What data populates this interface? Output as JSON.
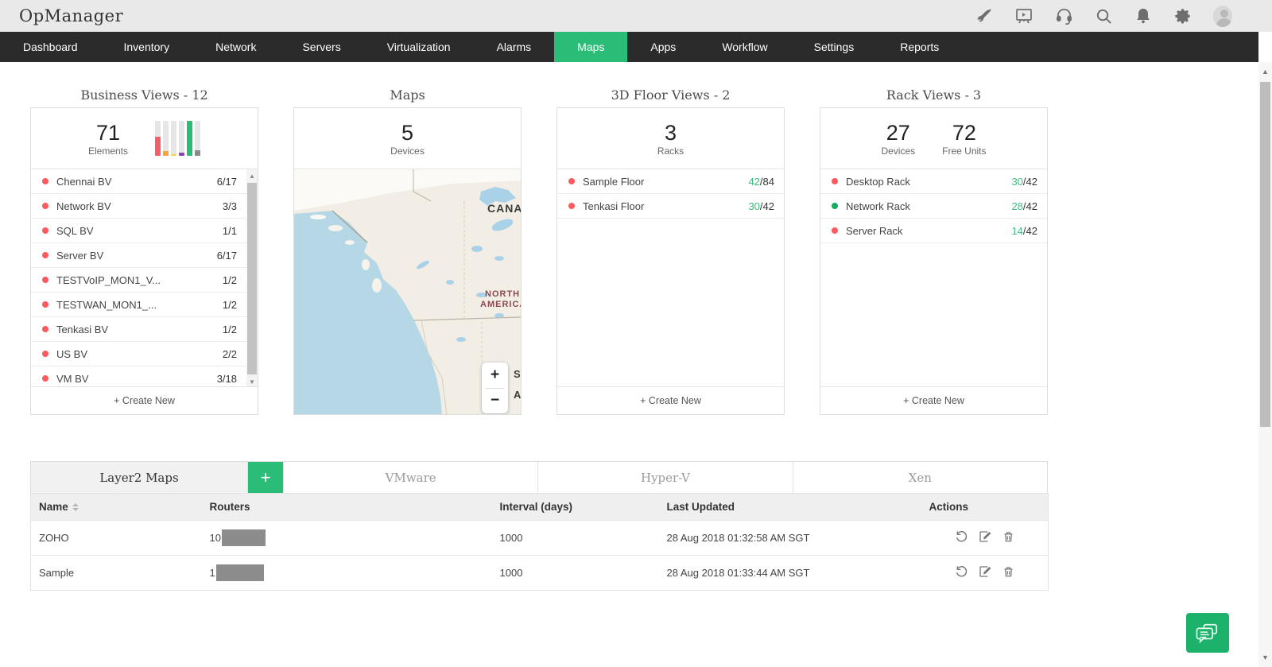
{
  "app": {
    "logo": "OpManager"
  },
  "colors": {
    "accent_green": "#2abd77",
    "status_red": "#fc5a5f",
    "status_green": "#17ab62",
    "count_green": "#3dbd7d"
  },
  "nav": {
    "items": [
      "Dashboard",
      "Inventory",
      "Network",
      "Servers",
      "Virtualization",
      "Alarms",
      "Maps",
      "Apps",
      "Workflow",
      "Settings",
      "Reports"
    ],
    "active": "Maps"
  },
  "panels": {
    "business_views": {
      "title": "Business Views - 12",
      "stat": {
        "value": "71",
        "label": "Elements"
      },
      "minibar": [
        {
          "pct": 55,
          "color": "#f3606a"
        },
        {
          "pct": 14,
          "color": "#f5a53a"
        },
        {
          "pct": 5,
          "color": "#f7d24a"
        },
        {
          "pct": 8,
          "color": "#8e44ad"
        },
        {
          "pct": 100,
          "color": "#2abd77"
        },
        {
          "pct": 16,
          "color": "#8a8a8a"
        }
      ],
      "items": [
        {
          "name": "Chennai BV",
          "count": "6/17",
          "status": "red"
        },
        {
          "name": "Network BV",
          "count": "3/3",
          "status": "red"
        },
        {
          "name": "SQL BV",
          "count": "1/1",
          "status": "red"
        },
        {
          "name": "Server BV",
          "count": "6/17",
          "status": "red"
        },
        {
          "name": "TESTVoIP_MON1_V...",
          "count": "1/2",
          "status": "red"
        },
        {
          "name": "TESTWAN_MON1_...",
          "count": "1/2",
          "status": "red"
        },
        {
          "name": "Tenkasi BV",
          "count": "1/2",
          "status": "red"
        },
        {
          "name": "US BV",
          "count": "2/2",
          "status": "red"
        },
        {
          "name": "VM BV",
          "count": "3/18",
          "status": "red"
        }
      ],
      "create_new": "+ Create New"
    },
    "maps": {
      "title": "Maps",
      "stat": {
        "value": "5",
        "label": "Devices"
      },
      "labels": {
        "canada": "CANADA",
        "north_america_1": "NORTH",
        "north_america_2": "AMERICA",
        "partial_1": "S",
        "partial_2": "A"
      },
      "zoom_in": "+",
      "zoom_out": "−"
    },
    "floor_views": {
      "title": "3D Floor Views - 2",
      "stat": {
        "value": "3",
        "label": "Racks"
      },
      "items": [
        {
          "name": "Sample Floor",
          "used": "42",
          "total": "/84",
          "status": "red"
        },
        {
          "name": "Tenkasi Floor",
          "used": "30",
          "total": "/42",
          "status": "red"
        }
      ],
      "create_new": "+ Create New"
    },
    "rack_views": {
      "title": "Rack Views - 3",
      "stats": [
        {
          "value": "27",
          "label": "Devices"
        },
        {
          "value": "72",
          "label": "Free Units"
        }
      ],
      "items": [
        {
          "name": "Desktop Rack",
          "used": "30",
          "total": "/42",
          "status": "red"
        },
        {
          "name": "Network Rack",
          "used": "28",
          "total": "/42",
          "status": "green"
        },
        {
          "name": "Server Rack",
          "used": "14",
          "total": "/42",
          "status": "red"
        }
      ],
      "create_new": "+ Create New"
    }
  },
  "bottom": {
    "tabs": [
      {
        "label": "Layer2 Maps",
        "active": true
      },
      {
        "label": "VMware",
        "active": false
      },
      {
        "label": "Hyper-V",
        "active": false
      },
      {
        "label": "Xen",
        "active": false
      }
    ],
    "add_tab_label": "+",
    "table": {
      "headers": {
        "name": "Name",
        "routers": "Routers",
        "interval": "Interval (days)",
        "updated": "Last Updated",
        "actions": "Actions"
      },
      "rows": [
        {
          "name": "ZOHO",
          "routers_visible": "10",
          "interval": "1000",
          "updated": "28 Aug 2018 01:32:58 AM SGT"
        },
        {
          "name": "Sample",
          "routers_visible": "1",
          "interval": "1000",
          "updated": "28 Aug 2018 01:33:44 AM SGT"
        }
      ]
    }
  }
}
